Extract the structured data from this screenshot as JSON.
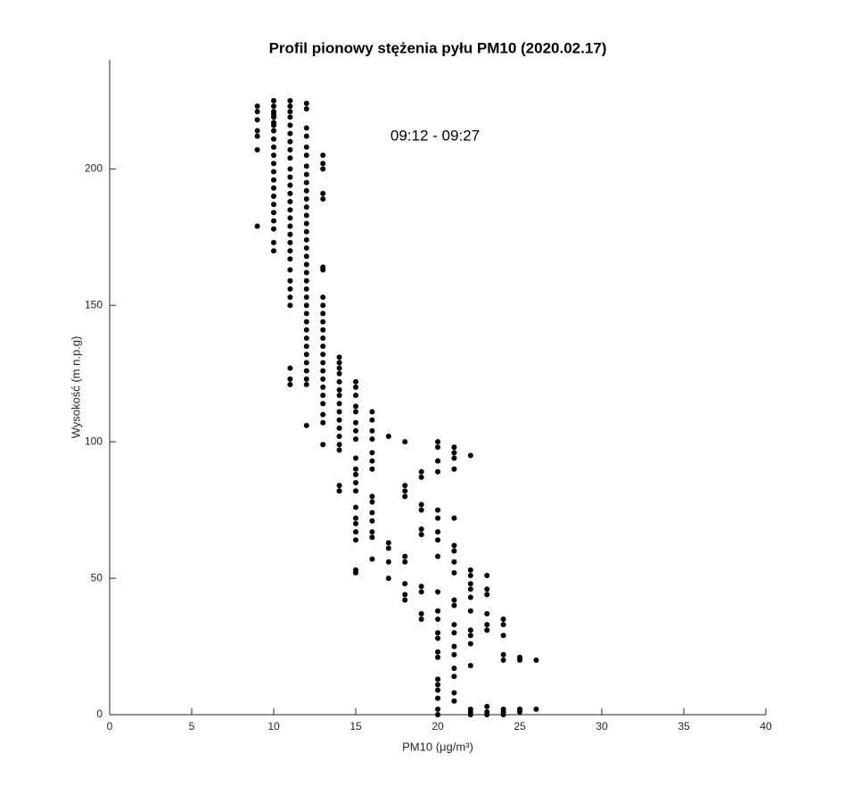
{
  "chart_data": {
    "type": "scatter",
    "title": "Profil pionowy stężenia pyłu PM10 (2020.02.17)",
    "annotation": "09:12 - 09:27",
    "xlabel": "PM10 (μg/m³)",
    "ylabel": "Wysokość (m n.p.g)",
    "color": "#000000",
    "xlim": [
      0,
      40
    ],
    "xticks": [
      0,
      5,
      10,
      15,
      20,
      25,
      30,
      35,
      40
    ],
    "ylim": [
      0,
      240
    ],
    "yticks": [
      0,
      50,
      100,
      150,
      200
    ],
    "x": [
      9,
      9,
      9,
      9,
      9,
      9,
      9,
      10,
      10,
      10,
      10,
      10,
      10,
      10,
      10,
      10,
      10,
      10,
      10,
      10,
      10,
      10,
      10,
      10,
      10,
      10,
      10,
      10,
      10,
      11,
      11,
      11,
      11,
      11,
      11,
      11,
      11,
      11,
      11,
      11,
      11,
      11,
      11,
      11,
      11,
      11,
      11,
      11,
      11,
      11,
      11,
      11,
      11,
      11,
      11,
      11,
      11,
      11,
      12,
      12,
      12,
      12,
      12,
      12,
      12,
      12,
      12,
      12,
      12,
      12,
      12,
      12,
      12,
      12,
      12,
      12,
      12,
      12,
      12,
      12,
      12,
      12,
      12,
      12,
      12,
      12,
      12,
      12,
      12,
      12,
      12,
      12,
      12,
      13,
      13,
      13,
      13,
      13,
      13,
      13,
      13,
      13,
      13,
      13,
      13,
      13,
      13,
      13,
      13,
      13,
      13,
      13,
      13,
      13,
      13,
      13,
      13,
      14,
      14,
      14,
      14,
      14,
      14,
      14,
      14,
      14,
      14,
      14,
      14,
      14,
      14,
      14,
      14,
      15,
      15,
      15,
      15,
      15,
      15,
      15,
      15,
      15,
      15,
      15,
      15,
      15,
      15,
      15,
      15,
      15,
      15,
      15,
      15,
      16,
      16,
      16,
      16,
      16,
      16,
      16,
      16,
      16,
      16,
      16,
      16,
      16,
      16,
      17,
      17,
      17,
      17,
      17,
      18,
      18,
      18,
      18,
      18,
      18,
      18,
      18,
      18,
      19,
      19,
      19,
      19,
      19,
      19,
      19,
      19,
      19,
      19,
      20,
      20,
      20,
      20,
      20,
      20,
      20,
      20,
      20,
      20,
      20,
      20,
      20,
      20,
      20,
      20,
      20,
      20,
      20,
      20,
      20,
      20,
      21,
      21,
      21,
      21,
      21,
      21,
      21,
      21,
      21,
      21,
      21,
      21,
      21,
      21,
      21,
      21,
      21,
      21,
      21,
      22,
      22,
      22,
      22,
      22,
      22,
      22,
      22,
      22,
      22,
      22,
      22,
      22,
      22,
      23,
      23,
      23,
      23,
      23,
      23,
      23,
      23,
      23,
      24,
      24,
      24,
      24,
      24,
      24,
      24,
      24,
      25,
      25,
      25,
      25,
      26,
      26
    ],
    "y": [
      223,
      221,
      218,
      214,
      212,
      207,
      179,
      225,
      223,
      221,
      219,
      217,
      214,
      211,
      208,
      205,
      202,
      199,
      196,
      193,
      190,
      187,
      184,
      181,
      178,
      173,
      170,
      220,
      216,
      225,
      223,
      221,
      219,
      216,
      213,
      210,
      207,
      204,
      200,
      197,
      194,
      191,
      188,
      185,
      182,
      179,
      176,
      173,
      170,
      167,
      163,
      159,
      156,
      153,
      150,
      127,
      123,
      121,
      224,
      222,
      215,
      212,
      208,
      205,
      201,
      198,
      195,
      192,
      189,
      186,
      183,
      180,
      177,
      174,
      171,
      168,
      165,
      162,
      159,
      156,
      153,
      150,
      147,
      144,
      141,
      138,
      135,
      132,
      129,
      126,
      123,
      121,
      106,
      205,
      202,
      200,
      191,
      189,
      164,
      163,
      153,
      150,
      147,
      144,
      141,
      138,
      135,
      132,
      129,
      126,
      123,
      120,
      117,
      114,
      110,
      107,
      99,
      131,
      129,
      127,
      125,
      122,
      119,
      117,
      114,
      111,
      108,
      105,
      102,
      99,
      97,
      84,
      82,
      122,
      120,
      117,
      113,
      111,
      107,
      104,
      101,
      94,
      90,
      88,
      85,
      82,
      76,
      72,
      70,
      67,
      64,
      53,
      52,
      111,
      108,
      104,
      101,
      96,
      93,
      90,
      80,
      78,
      74,
      71,
      67,
      65,
      57,
      102,
      63,
      61,
      56,
      50,
      100,
      84,
      82,
      80,
      58,
      56,
      48,
      44,
      42,
      89,
      87,
      77,
      75,
      68,
      66,
      47,
      45,
      37,
      35,
      100,
      98,
      93,
      89,
      75,
      72,
      67,
      64,
      58,
      45,
      38,
      35,
      30,
      28,
      23,
      21,
      13,
      11,
      9,
      6,
      2,
      0,
      98,
      96,
      94,
      90,
      72,
      62,
      60,
      56,
      52,
      42,
      40,
      33,
      30,
      25,
      22,
      17,
      14,
      8,
      5,
      95,
      53,
      51,
      48,
      46,
      43,
      38,
      31,
      29,
      26,
      18,
      2,
      1,
      0,
      51,
      46,
      44,
      37,
      33,
      31,
      3,
      1,
      0,
      35,
      33,
      29,
      22,
      20,
      2,
      1,
      0,
      21,
      20,
      2,
      1,
      20,
      2
    ]
  }
}
